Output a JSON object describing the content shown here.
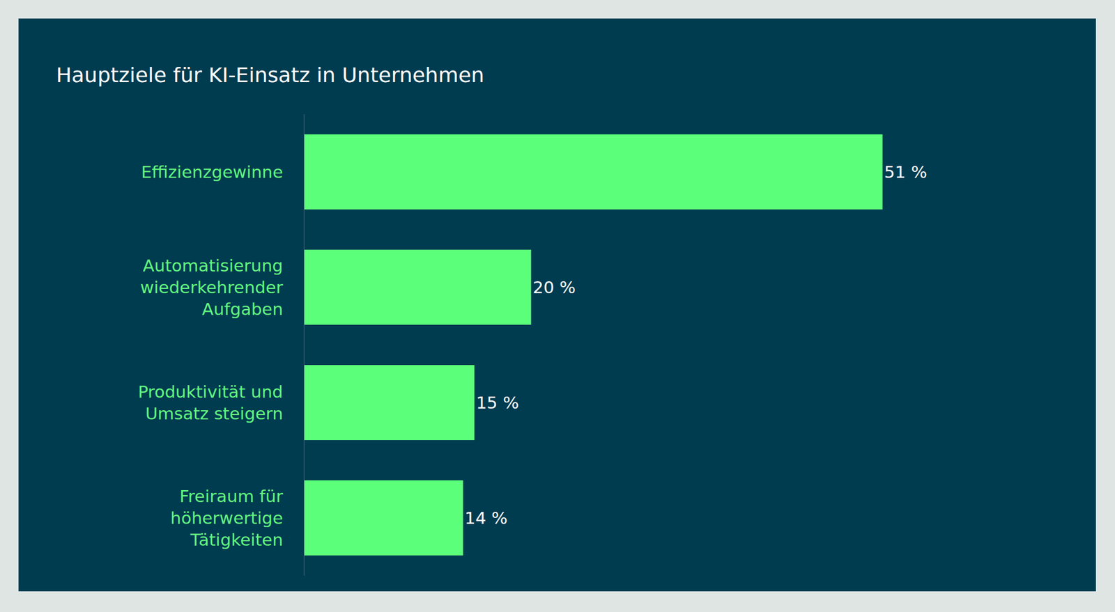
{
  "chart_data": {
    "type": "bar",
    "title": "Hauptziele für KI-Einsatz in Unternehmen",
    "orientation": "horizontal",
    "categories": [
      "Effizienzgewinne",
      "Automatisierung wiederkehrender Aufgaben",
      "Produktivität und Umsatz steigern",
      "Freiraum für höherwertige Tätigkeiten"
    ],
    "values": [
      51,
      20,
      15,
      14
    ],
    "value_labels": [
      "51 %",
      "20 %",
      "15 %",
      "14 %"
    ],
    "color": "#5cff7a",
    "data_labels": true,
    "tick_labels": "y",
    "grid": false
  }
}
